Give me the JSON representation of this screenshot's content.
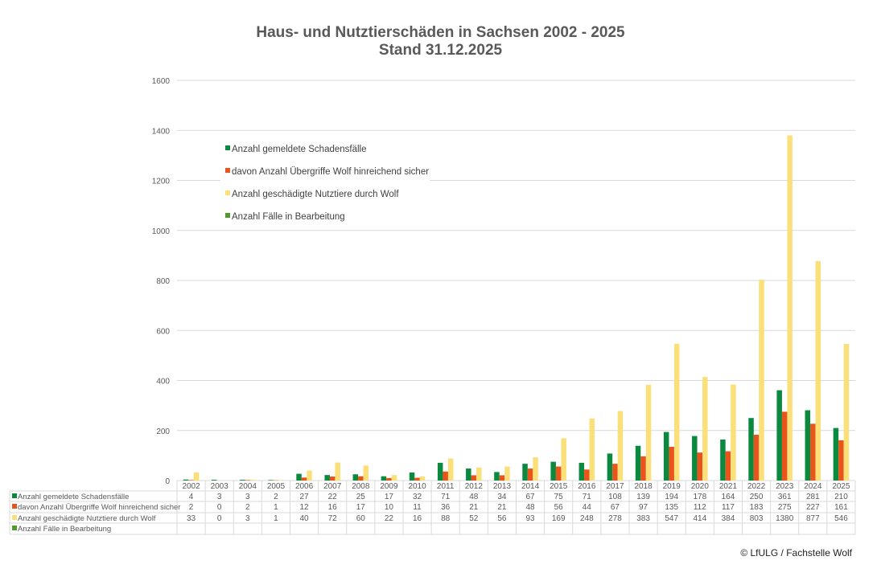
{
  "chart_data": {
    "type": "bar",
    "title": "Haus- und Nutztierschäden in Sachsen 2002 - 2025",
    "subtitle": "Stand 31.12.2025",
    "categories": [
      "2002",
      "2003",
      "2004",
      "2005",
      "2006",
      "2007",
      "2008",
      "2009",
      "2010",
      "2011",
      "2012",
      "2013",
      "2014",
      "2015",
      "2016",
      "2017",
      "2018",
      "2019",
      "2020",
      "2021",
      "2022",
      "2023",
      "2024",
      "2025"
    ],
    "series": [
      {
        "name": "Anzahl gemeldete Schadensfälle",
        "color": "#0b8a3f",
        "values": [
          4,
          3,
          3,
          2,
          27,
          22,
          25,
          17,
          32,
          71,
          48,
          34,
          67,
          75,
          71,
          108,
          139,
          194,
          178,
          164,
          250,
          361,
          281,
          210
        ]
      },
      {
        "name": "davon Anzahl Übergriffe Wolf hinreichend sicher",
        "color": "#e8541c",
        "values": [
          2,
          0,
          2,
          1,
          12,
          16,
          17,
          10,
          11,
          36,
          21,
          21,
          48,
          56,
          44,
          67,
          97,
          135,
          112,
          117,
          183,
          275,
          227,
          161
        ]
      },
      {
        "name": "Anzahl geschädigte Nutztiere durch Wolf",
        "color": "#fbe07a",
        "values": [
          33,
          0,
          3,
          1,
          40,
          72,
          60,
          22,
          16,
          88,
          52,
          56,
          93,
          169,
          248,
          278,
          383,
          547,
          414,
          384,
          803,
          1380,
          877,
          546
        ]
      },
      {
        "name": "Anzahl Fälle in Bearbeitung",
        "color": "#4e9a2e",
        "values": [
          null,
          null,
          null,
          null,
          null,
          null,
          null,
          null,
          null,
          null,
          null,
          null,
          null,
          null,
          null,
          null,
          null,
          null,
          null,
          null,
          null,
          null,
          null,
          null
        ]
      }
    ],
    "ylim": [
      0,
      1600
    ],
    "yticks": [
      0,
      200,
      400,
      600,
      800,
      1000,
      1200,
      1400,
      1600
    ],
    "grid": true,
    "legend": "top-left inside plot",
    "data_table": true
  },
  "footer": {
    "copyright": "© LfULG / Fachstelle Wolf"
  }
}
